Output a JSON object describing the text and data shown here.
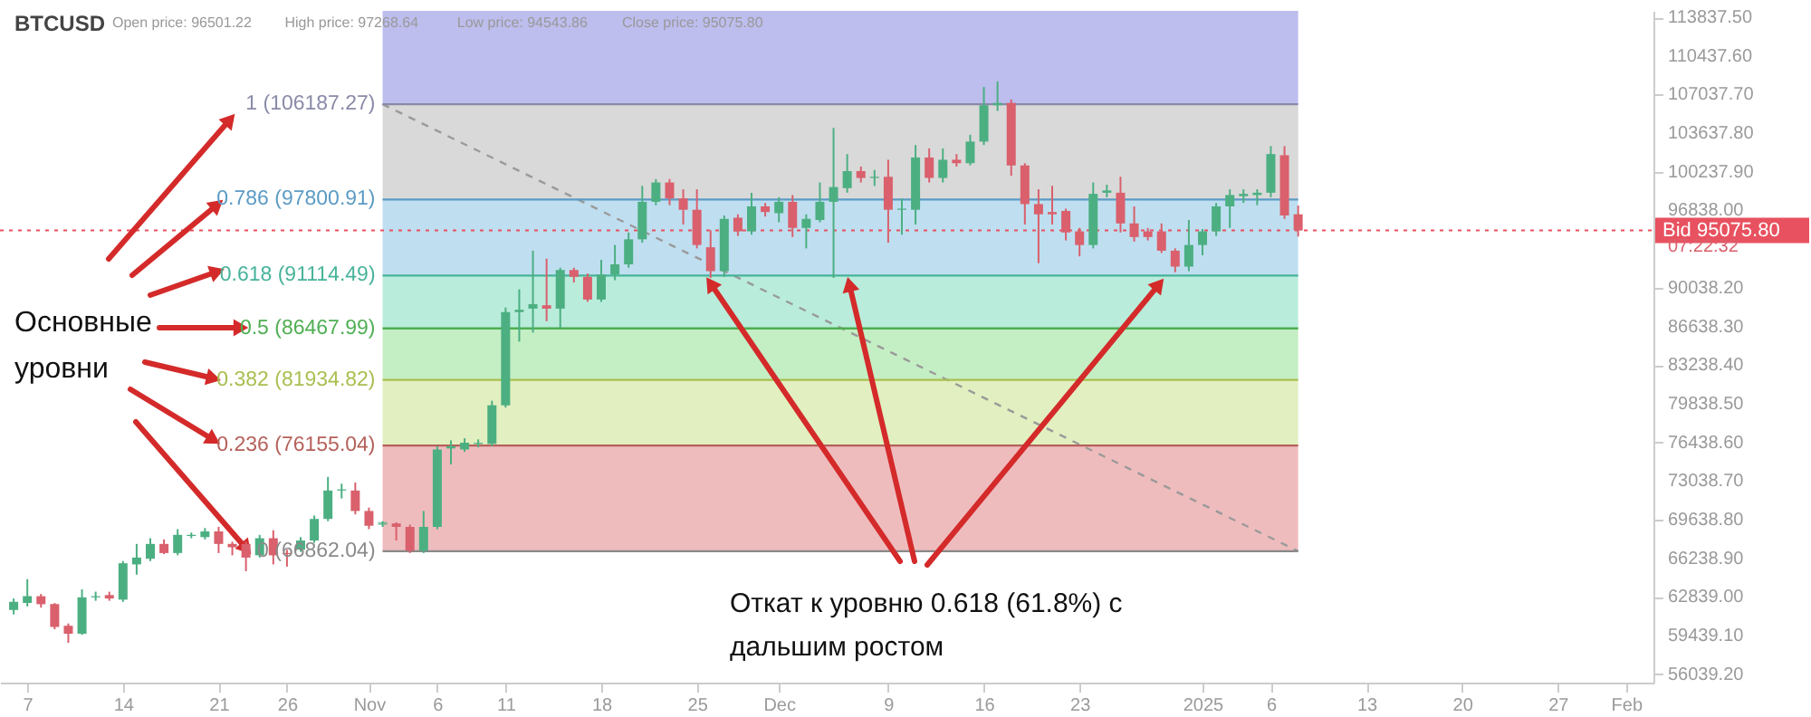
{
  "chart_data": {
    "type": "candlestick",
    "title": "BTCUSD",
    "x": [
      "2024-10-06",
      "2024-10-07",
      "2024-10-08",
      "2024-10-09",
      "2024-10-10",
      "2024-10-11",
      "2024-10-12",
      "2024-10-13",
      "2024-10-14",
      "2024-10-15",
      "2024-10-16",
      "2024-10-17",
      "2024-10-18",
      "2024-10-19",
      "2024-10-20",
      "2024-10-21",
      "2024-10-22",
      "2024-10-23",
      "2024-10-24",
      "2024-10-25",
      "2024-10-26",
      "2024-10-27",
      "2024-10-28",
      "2024-10-29",
      "2024-10-30",
      "2024-10-31",
      "2024-11-01",
      "2024-11-02",
      "2024-11-03",
      "2024-11-04",
      "2024-11-05",
      "2024-11-06",
      "2024-11-07",
      "2024-11-08",
      "2024-11-09",
      "2024-11-10",
      "2024-11-11",
      "2024-11-12",
      "2024-11-13",
      "2024-11-14",
      "2024-11-15",
      "2024-11-16",
      "2024-11-17",
      "2024-11-18",
      "2024-11-19",
      "2024-11-20",
      "2024-11-21",
      "2024-11-22",
      "2024-11-23",
      "2024-11-24",
      "2024-11-25",
      "2024-11-26",
      "2024-11-27",
      "2024-11-28",
      "2024-11-29",
      "2024-11-30",
      "2024-12-01",
      "2024-12-02",
      "2024-12-03",
      "2024-12-04",
      "2024-12-05",
      "2024-12-06",
      "2024-12-07",
      "2024-12-08",
      "2024-12-09",
      "2024-12-10",
      "2024-12-11",
      "2024-12-12",
      "2024-12-13",
      "2024-12-14",
      "2024-12-15",
      "2024-12-16",
      "2024-12-17",
      "2024-12-18",
      "2024-12-19",
      "2024-12-20",
      "2024-12-21",
      "2024-12-22",
      "2024-12-23",
      "2024-12-24",
      "2024-12-25",
      "2024-12-26",
      "2024-12-27",
      "2024-12-28",
      "2024-12-29",
      "2024-12-30",
      "2024-12-31",
      "2025-01-01",
      "2025-01-02",
      "2025-01-03",
      "2025-01-04",
      "2025-01-05",
      "2025-01-06",
      "2025-01-07",
      "2025-01-08"
    ],
    "ohlc": [
      [
        61700,
        62700,
        61300,
        62400
      ],
      [
        62300,
        64400,
        62000,
        62900
      ],
      [
        62900,
        63100,
        61900,
        62200
      ],
      [
        62200,
        62300,
        60000,
        60200
      ],
      [
        60300,
        60500,
        58800,
        59600
      ],
      [
        59600,
        63500,
        59500,
        62800
      ],
      [
        62800,
        63300,
        62500,
        62900
      ],
      [
        63000,
        63300,
        62500,
        62700
      ],
      [
        62600,
        66000,
        62400,
        65800
      ],
      [
        65700,
        67500,
        64800,
        66300
      ],
      [
        66200,
        68000,
        66000,
        67500
      ],
      [
        67500,
        67900,
        66600,
        66700
      ],
      [
        66700,
        68800,
        66500,
        68300
      ],
      [
        68200,
        68500,
        68000,
        68300
      ],
      [
        68100,
        68900,
        67900,
        68600
      ],
      [
        68600,
        69000,
        66700,
        67500
      ],
      [
        67500,
        67700,
        66500,
        67200
      ],
      [
        67500,
        67700,
        65100,
        66300
      ],
      [
        66500,
        68300,
        66300,
        68000
      ],
      [
        68000,
        68700,
        65700,
        66500
      ],
      [
        66700,
        67000,
        65500,
        66600
      ],
      [
        67000,
        68100,
        66800,
        67800
      ],
      [
        67800,
        70000,
        67600,
        69700
      ],
      [
        69700,
        73400,
        69500,
        72200
      ],
      [
        72200,
        72800,
        71500,
        72300
      ],
      [
        72200,
        72900,
        70100,
        70400
      ],
      [
        70400,
        70700,
        68800,
        69100
      ],
      [
        69300,
        69500,
        69000,
        69300
      ],
      [
        69300,
        69400,
        67800,
        69000
      ],
      [
        69000,
        69200,
        66700,
        66900
      ],
      [
        66900,
        70400,
        66700,
        69000
      ],
      [
        69000,
        76100,
        68800,
        75800
      ],
      [
        75900,
        76600,
        74500,
        76100
      ],
      [
        75800,
        76800,
        75600,
        76400
      ],
      [
        76300,
        76700,
        76000,
        76400
      ],
      [
        76300,
        80100,
        76100,
        79700
      ],
      [
        79700,
        88300,
        79500,
        87900
      ],
      [
        87900,
        89900,
        85300,
        88100
      ],
      [
        88200,
        93300,
        86100,
        88600
      ],
      [
        88500,
        92600,
        87100,
        88200
      ],
      [
        88200,
        91800,
        86500,
        91600
      ],
      [
        91600,
        91800,
        90500,
        91000
      ],
      [
        91000,
        91300,
        88800,
        89000
      ],
      [
        89000,
        92500,
        88800,
        91200
      ],
      [
        91200,
        93800,
        90700,
        92100
      ],
      [
        92100,
        94900,
        91800,
        94300
      ],
      [
        94300,
        99000,
        94000,
        97600
      ],
      [
        97600,
        99600,
        97300,
        99300
      ],
      [
        99300,
        99600,
        97300,
        97900
      ],
      [
        97900,
        98700,
        95600,
        96900
      ],
      [
        96900,
        98700,
        93500,
        93800
      ],
      [
        93600,
        95100,
        90900,
        91500
      ],
      [
        91500,
        96400,
        91000,
        96100
      ],
      [
        96200,
        96500,
        94600,
        95000
      ],
      [
        95000,
        98400,
        94700,
        97200
      ],
      [
        97200,
        97500,
        96300,
        96700
      ],
      [
        96600,
        98000,
        95800,
        97600
      ],
      [
        97600,
        98200,
        94500,
        95300
      ],
      [
        95300,
        96500,
        93500,
        96100
      ],
      [
        96000,
        99300,
        95800,
        97600
      ],
      [
        97600,
        104100,
        90900,
        98900
      ],
      [
        98800,
        101800,
        98400,
        100300
      ],
      [
        100300,
        100700,
        99300,
        99700
      ],
      [
        99700,
        100400,
        99000,
        99800
      ],
      [
        99800,
        101300,
        94000,
        96900
      ],
      [
        96900,
        97900,
        94700,
        97000
      ],
      [
        96900,
        102600,
        95600,
        101500
      ],
      [
        101500,
        102300,
        99300,
        99700
      ],
      [
        99700,
        102300,
        99300,
        101300
      ],
      [
        101300,
        101800,
        100700,
        101000
      ],
      [
        101000,
        103500,
        100800,
        102900
      ],
      [
        102900,
        107700,
        102600,
        106100
      ],
      [
        106100,
        108200,
        105600,
        106300
      ],
      [
        106300,
        106600,
        99900,
        100800
      ],
      [
        100800,
        101000,
        95600,
        97400
      ],
      [
        97400,
        98700,
        92200,
        96500
      ],
      [
        96700,
        99000,
        95600,
        96500
      ],
      [
        96800,
        97000,
        94200,
        94900
      ],
      [
        95000,
        95300,
        92800,
        93800
      ],
      [
        93800,
        99300,
        93500,
        98300
      ],
      [
        98400,
        99100,
        98000,
        98600
      ],
      [
        98400,
        99800,
        94900,
        95700
      ],
      [
        95700,
        97200,
        94100,
        94500
      ],
      [
        95000,
        95300,
        94200,
        94500
      ],
      [
        95000,
        95700,
        93100,
        93300
      ],
      [
        93300,
        93500,
        91400,
        91900
      ],
      [
        91900,
        96000,
        91500,
        93800
      ],
      [
        93800,
        95200,
        92900,
        95000
      ],
      [
        95000,
        97500,
        94600,
        97200
      ],
      [
        97200,
        98700,
        95300,
        98200
      ],
      [
        98100,
        98700,
        97500,
        98300
      ],
      [
        98200,
        98700,
        97300,
        98400
      ],
      [
        98400,
        102500,
        98000,
        101800
      ],
      [
        101700,
        102500,
        96100,
        96400
      ],
      [
        96501.22,
        97268.64,
        94543.86,
        95075.8
      ]
    ],
    "colors": [
      "#4caf82",
      "#4caf82",
      "#d9606c",
      "#d9606c",
      "#d9606c",
      "#4caf82",
      "#4caf82",
      "#d9606c",
      "#4caf82",
      "#4caf82",
      "#4caf82",
      "#d9606c",
      "#4caf82",
      "#4caf82",
      "#4caf82",
      "#d9606c",
      "#d9606c",
      "#d9606c",
      "#4caf82",
      "#d9606c",
      "#d9606c",
      "#4caf82",
      "#4caf82",
      "#4caf82",
      "#4caf82",
      "#d9606c",
      "#d9606c",
      "#4caf82",
      "#d9606c",
      "#d9606c",
      "#4caf82",
      "#4caf82",
      "#4caf82",
      "#4caf82",
      "#4caf82",
      "#4caf82",
      "#4caf82",
      "#4caf82",
      "#4caf82",
      "#d9606c",
      "#4caf82",
      "#d9606c",
      "#d9606c",
      "#4caf82",
      "#4caf82",
      "#4caf82",
      "#4caf82",
      "#4caf82",
      "#d9606c",
      "#d9606c",
      "#d9606c",
      "#d9606c",
      "#4caf82",
      "#d9606c",
      "#4caf82",
      "#d9606c",
      "#4caf82",
      "#d9606c",
      "#4caf82",
      "#4caf82",
      "#4caf82",
      "#4caf82",
      "#d9606c",
      "#4caf82",
      "#d9606c",
      "#4caf82",
      "#4caf82",
      "#d9606c",
      "#4caf82",
      "#d9606c",
      "#4caf82",
      "#4caf82",
      "#4caf82",
      "#d9606c",
      "#d9606c",
      "#d9606c",
      "#d9606c",
      "#d9606c",
      "#d9606c",
      "#4caf82",
      "#4caf82",
      "#d9606c",
      "#d9606c",
      "#d9606c",
      "#d9606c",
      "#d9606c",
      "#4caf82",
      "#4caf82",
      "#4caf82",
      "#4caf82",
      "#4caf82",
      "#4caf82",
      "#4caf82",
      "#d9606c",
      "#d9606c"
    ],
    "series": [
      {
        "type": "line",
        "x": [
          "2024-11-02",
          "2025-01-08"
        ],
        "values": [
          106187.27,
          66862.04
        ],
        "color": "#9a9a9a",
        "line_style": "dashed"
      }
    ],
    "bands": [
      {
        "axis": "y",
        "from": 106187.27,
        "to": 114400,
        "color": "#bdbdee"
      },
      {
        "axis": "y",
        "from": 97800.91,
        "to": 106187.27,
        "color": "#d9d9d9"
      },
      {
        "axis": "y",
        "from": 91114.49,
        "to": 97800.91,
        "color": "#bfdff0"
      },
      {
        "axis": "y",
        "from": 86467.99,
        "to": 91114.49,
        "color": "#b9ecdb"
      },
      {
        "axis": "y",
        "from": 81934.82,
        "to": 86467.99,
        "color": "#c4eec4"
      },
      {
        "axis": "y",
        "from": 76155.04,
        "to": 81934.82,
        "color": "#e2efc0"
      },
      {
        "axis": "y",
        "from": 66862.04,
        "to": 76155.04,
        "color": "#efbcbe"
      }
    ],
    "ref_lines": [
      {
        "axis": "y",
        "value": 106187.27,
        "label": "1 (106187.27)",
        "color": "#8a8aa8",
        "line_style": "solid"
      },
      {
        "axis": "y",
        "value": 97800.91,
        "label": "0.786 (97800.91)",
        "color": "#5b9bc4",
        "line_style": "solid"
      },
      {
        "axis": "y",
        "value": 91114.49,
        "label": "0.618 (91114.49)",
        "color": "#47b39a",
        "line_style": "solid"
      },
      {
        "axis": "y",
        "value": 86467.99,
        "label": "0.5 (86467.99)",
        "color": "#4fae52",
        "line_style": "solid"
      },
      {
        "axis": "y",
        "value": 81934.82,
        "label": "0.382 (81934.82)",
        "color": "#a8bf50",
        "line_style": "solid"
      },
      {
        "axis": "y",
        "value": 76155.04,
        "label": "0.236 (76155.04)",
        "color": "#b5605a",
        "line_style": "solid"
      },
      {
        "axis": "y",
        "value": 66862.04,
        "label": "0 (66862.04)",
        "color": "#8a8a8a",
        "line_style": "solid"
      },
      {
        "axis": "y",
        "value": 95075.8,
        "label": "Bid 95075.80",
        "color": "#e8515f",
        "line_style": "dotted"
      }
    ],
    "annotations": [
      "Open price: 96501.22",
      "High price: 97268.64",
      "Low price: 94543.86",
      "Close price: 95075.80",
      "07:22:32",
      "Основные\nуровни",
      {
        "text": "Откат к уровню 0.618 (61.8%) с\nдальшим ростом",
        "x": "2024-11-26",
        "y": 90900
      }
    ],
    "xlim": [
      "2024-10-05",
      "2025-02-03"
    ],
    "xticks": [
      {
        "value": "2024-10-07",
        "label": "7"
      },
      {
        "value": "2024-10-14",
        "label": "14"
      },
      {
        "value": "2024-10-21",
        "label": "21"
      },
      {
        "value": "2024-10-26",
        "label": "26"
      },
      {
        "value": "2024-11-01",
        "label": "Nov"
      },
      {
        "value": "2024-11-06",
        "label": "6"
      },
      {
        "value": "2024-11-11",
        "label": "11"
      },
      {
        "value": "2024-11-18",
        "label": "18"
      },
      {
        "value": "2024-11-25",
        "label": "25"
      },
      {
        "value": "2024-12-01",
        "label": "Dec"
      },
      {
        "value": "2024-12-09",
        "label": "9"
      },
      {
        "value": "2024-12-16",
        "label": "16"
      },
      {
        "value": "2024-12-23",
        "label": "23"
      },
      {
        "value": "2025-01-01",
        "label": "2025"
      },
      {
        "value": "2025-01-06",
        "label": "6"
      },
      {
        "value": "2025-01-13",
        "label": "13"
      },
      {
        "value": "2025-01-20",
        "label": "20"
      },
      {
        "value": "2025-01-27",
        "label": "27"
      },
      {
        "value": "2025-02-01",
        "label": "Feb"
      }
    ],
    "ylim": [
      55300,
      114400
    ],
    "yticks": [
      {
        "value": 113837.5,
        "label": "113837.50"
      },
      {
        "value": 110437.6,
        "label": "110437.60"
      },
      {
        "value": 107037.7,
        "label": "107037.70"
      },
      {
        "value": 103637.8,
        "label": "103637.80"
      },
      {
        "value": 100237.9,
        "label": "100237.90"
      },
      {
        "value": 96838.0,
        "label": "96838.00"
      },
      {
        "value": 90038.2,
        "label": "90038.20"
      },
      {
        "value": 86638.3,
        "label": "86638.30"
      },
      {
        "value": 83238.4,
        "label": "83238.40"
      },
      {
        "value": 79838.5,
        "label": "79838.50"
      },
      {
        "value": 76438.6,
        "label": "76438.60"
      },
      {
        "value": 73038.7,
        "label": "73038.70"
      },
      {
        "value": 69638.8,
        "label": "69638.80"
      },
      {
        "value": 66238.9,
        "label": "66238.90"
      },
      {
        "value": 62839.0,
        "label": "62839.00"
      },
      {
        "value": 59439.1,
        "label": "59439.10"
      },
      {
        "value": 56039.2,
        "label": "56039.20"
      }
    ]
  }
}
